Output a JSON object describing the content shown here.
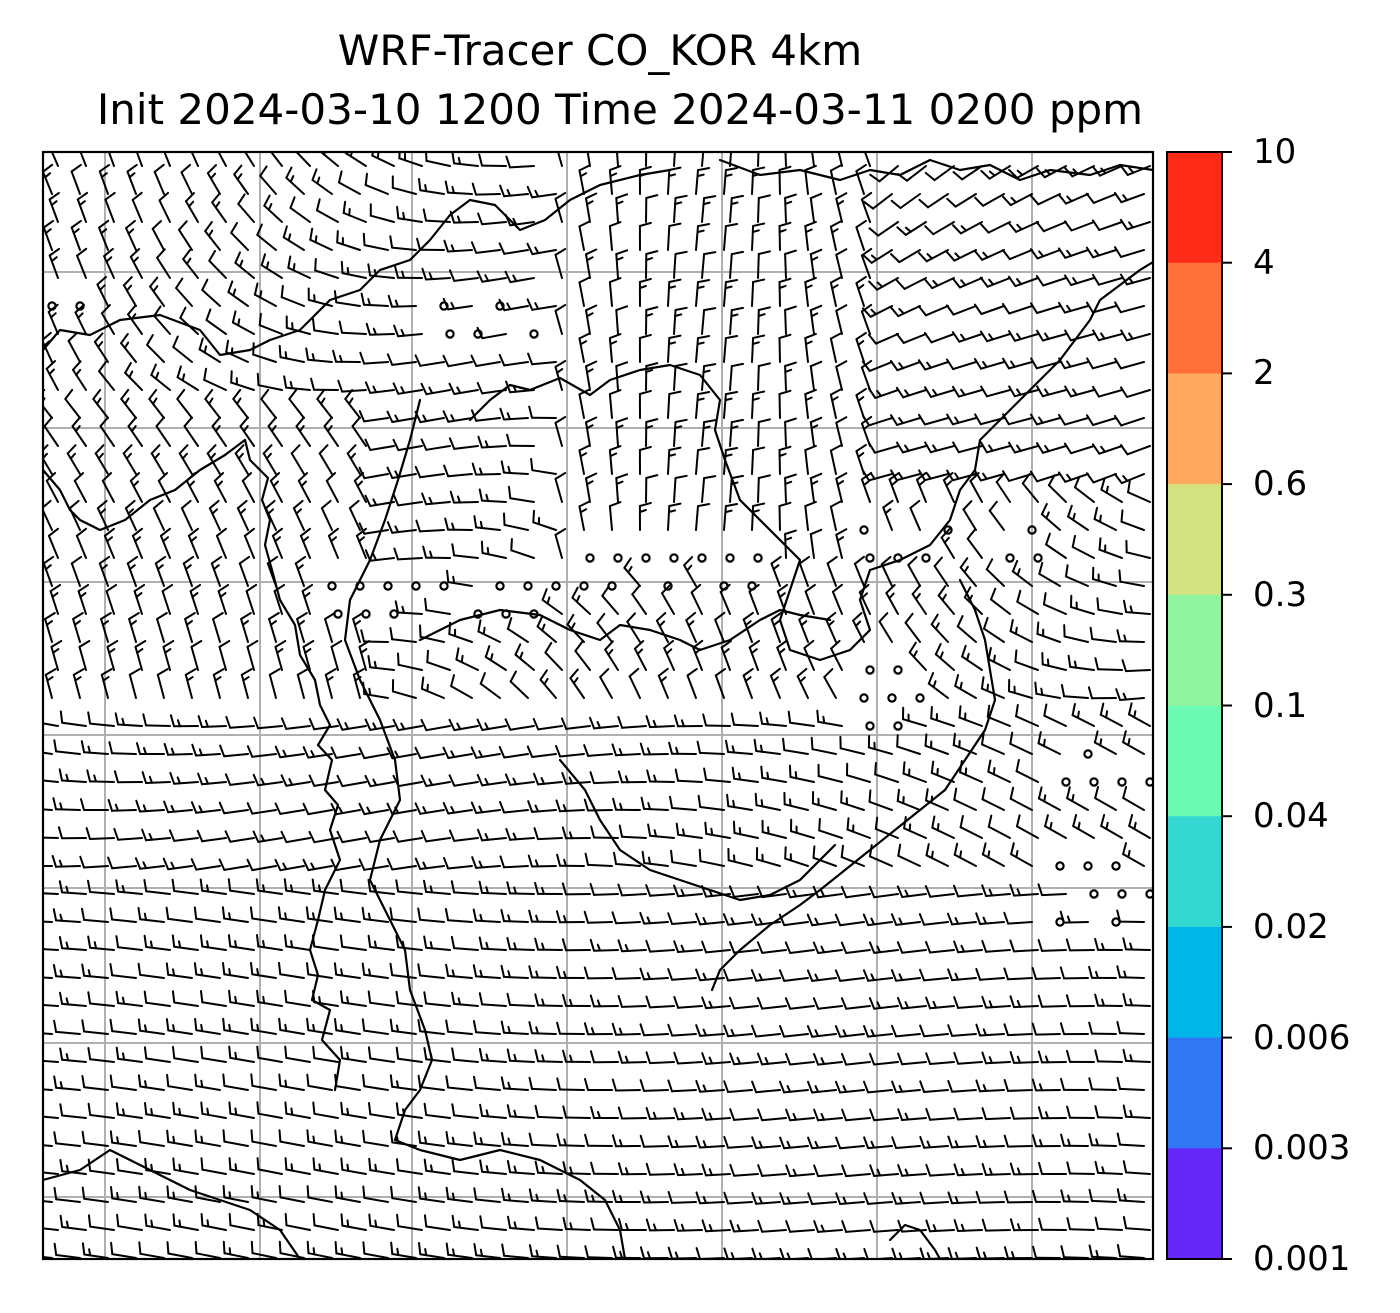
{
  "title": {
    "line1": "WRF-Tracer CO_KOR 4km",
    "line2": "Init 2024-03-10 1200 Time 2024-03-11 0200 ppm"
  },
  "colorbar": {
    "labels": [
      "10",
      "4",
      "2",
      "0.6",
      "0.3",
      "0.1",
      "0.04",
      "0.02",
      "0.006",
      "0.003",
      "0.001"
    ],
    "colors": [
      "#ff2a18",
      "#ff6f3a",
      "#ffaa5f",
      "#d3e280",
      "#8ff3a0",
      "#6dfab4",
      "#34d8d0",
      "#00b5e8",
      "#3278f5",
      "#6428f8"
    ]
  },
  "map": {
    "gridlines": true,
    "coastlines": true,
    "wind_barbs": true,
    "calm_markers": true
  },
  "colors": {
    "background": "#ffffff",
    "grid": "#b0b0b0",
    "ink": "#000000"
  }
}
